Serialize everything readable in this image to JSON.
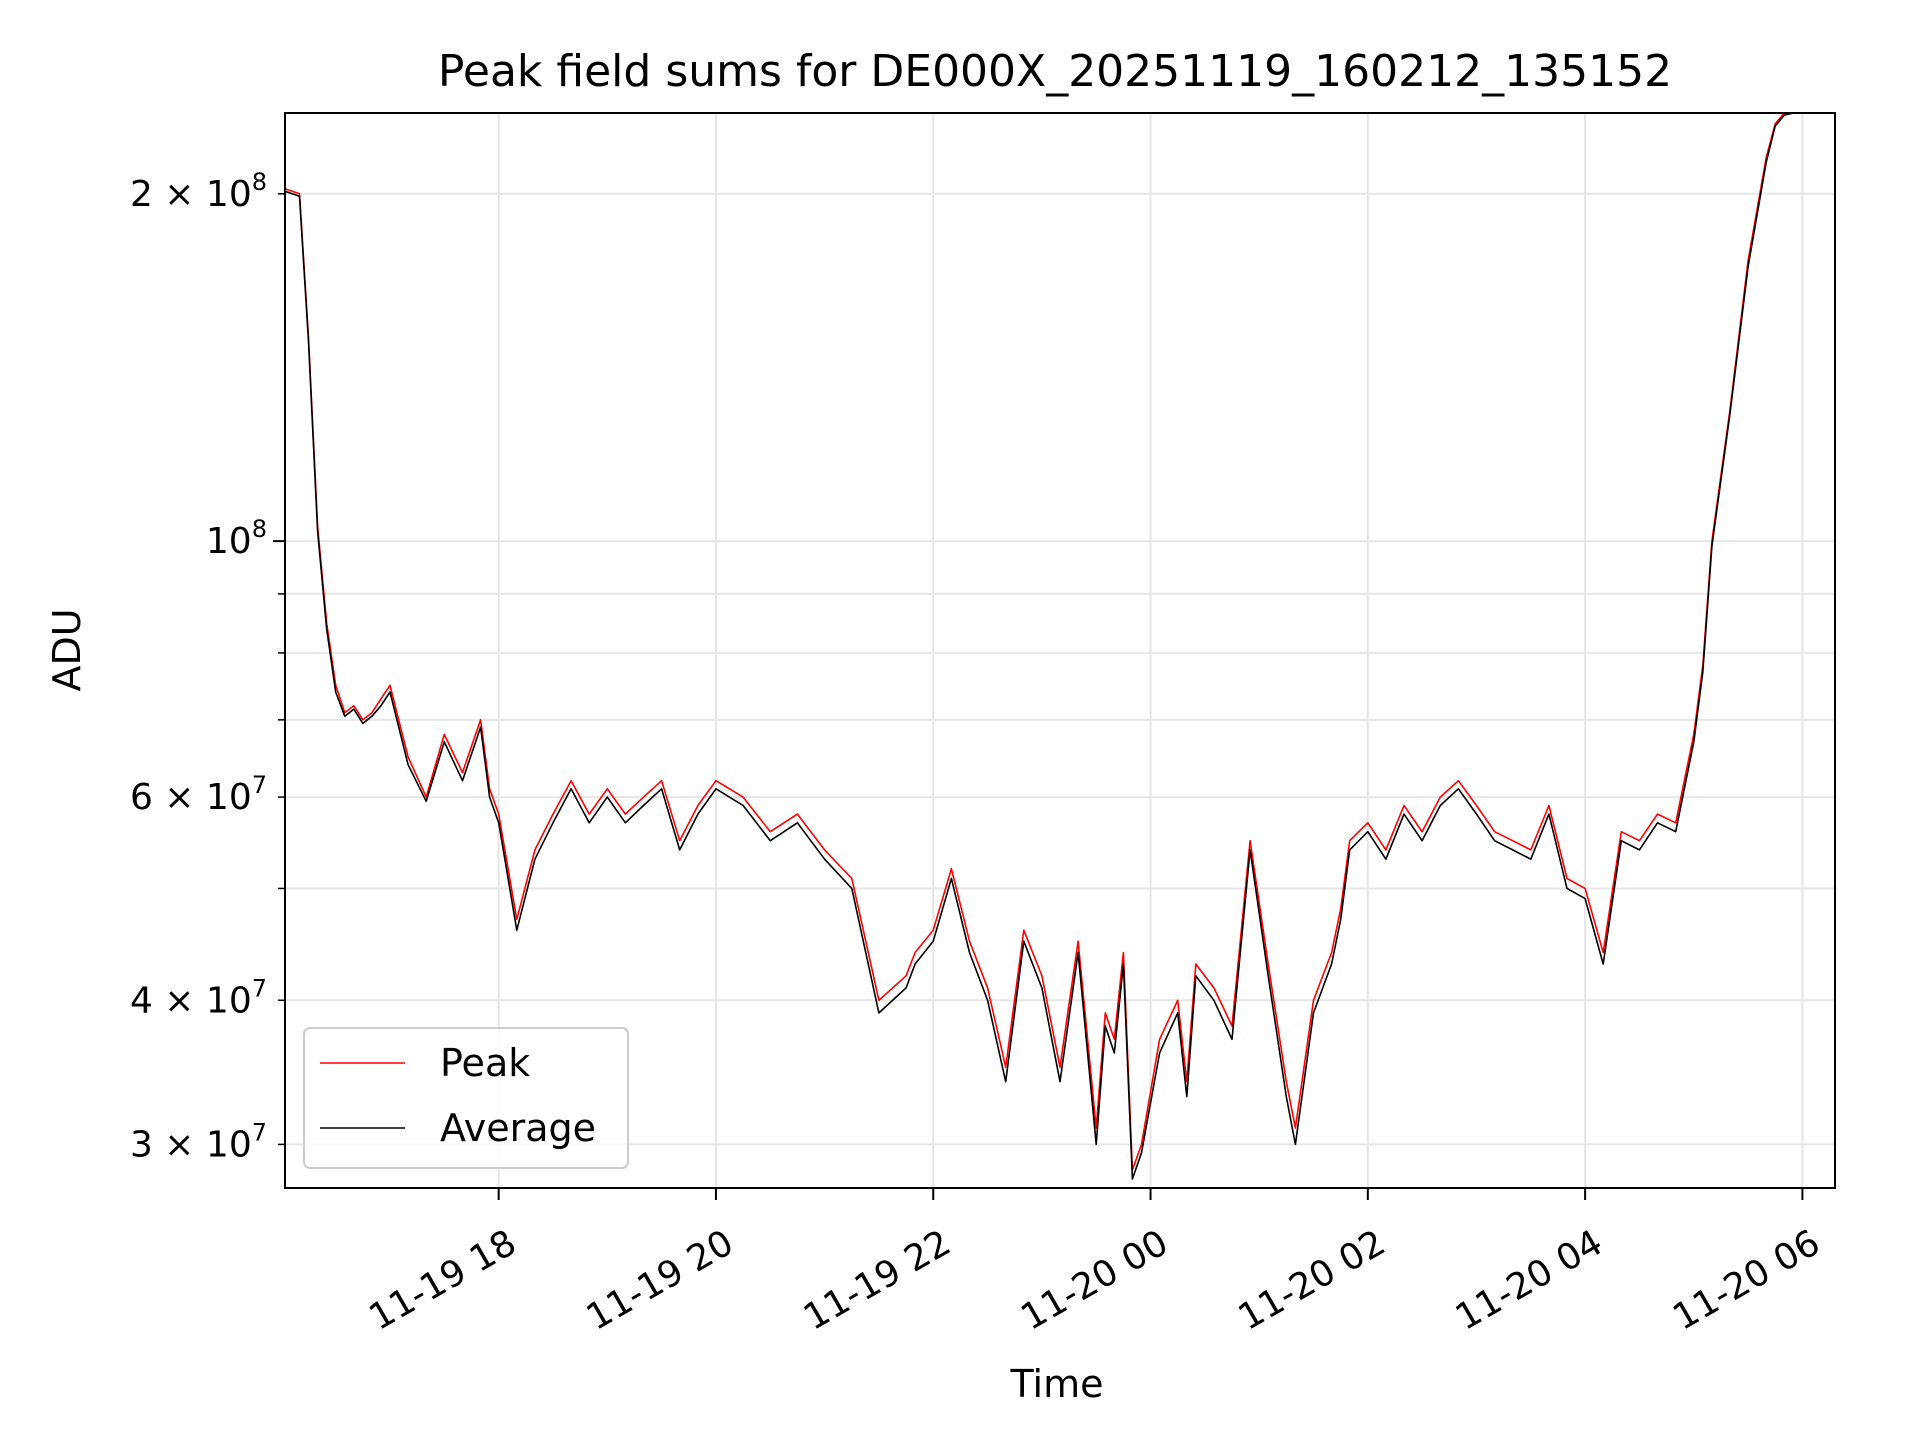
{
  "chart_data": {
    "type": "line",
    "title": "Peak field sums for DE000X_20251119_160212_135152",
    "xlabel": "Time",
    "ylabel": "ADU",
    "yscale": "log",
    "ylim": [
      27500000,
      235000000
    ],
    "xlim": [
      "2025-11-19 16:02",
      "2025-11-20 06:18"
    ],
    "grid": true,
    "legend_position": "lower-left",
    "x_ticks": [
      {
        "t": "2025-11-19 18:00",
        "label": "11-19 18"
      },
      {
        "t": "2025-11-19 20:00",
        "label": "11-19 20"
      },
      {
        "t": "2025-11-19 22:00",
        "label": "11-19 22"
      },
      {
        "t": "2025-11-20 00:00",
        "label": "11-20 00"
      },
      {
        "t": "2025-11-20 02:00",
        "label": "11-20 02"
      },
      {
        "t": "2025-11-20 04:00",
        "label": "11-20 04"
      },
      {
        "t": "2025-11-20 06:00",
        "label": "11-20 06"
      }
    ],
    "y_major_ticks": [
      {
        "value": 100000000,
        "label": "10",
        "sup": "8"
      }
    ],
    "y_minor_ticks": [
      {
        "value": 30000000,
        "label": "3 × 10",
        "sup": "7"
      },
      {
        "value": 40000000,
        "label": "4 × 10",
        "sup": "7"
      },
      {
        "value": 50000000
      },
      {
        "value": 60000000,
        "label": "6 × 10",
        "sup": "7"
      },
      {
        "value": 70000000
      },
      {
        "value": 80000000
      },
      {
        "value": 90000000
      },
      {
        "value": 200000000,
        "label": "2 × 10",
        "sup": "8"
      }
    ],
    "series": [
      {
        "name": "Peak",
        "color": "#ff0000",
        "x": [
          "2025-11-19 16:02",
          "2025-11-19 16:10",
          "2025-11-19 16:15",
          "2025-11-19 16:20",
          "2025-11-19 16:25",
          "2025-11-19 16:30",
          "2025-11-19 16:35",
          "2025-11-19 16:40",
          "2025-11-19 16:45",
          "2025-11-19 16:50",
          "2025-11-19 16:55",
          "2025-11-19 17:00",
          "2025-11-19 17:10",
          "2025-11-19 17:20",
          "2025-11-19 17:30",
          "2025-11-19 17:40",
          "2025-11-19 17:50",
          "2025-11-19 17:55",
          "2025-11-19 18:00",
          "2025-11-19 18:10",
          "2025-11-19 18:20",
          "2025-11-19 18:30",
          "2025-11-19 18:40",
          "2025-11-19 18:50",
          "2025-11-19 19:00",
          "2025-11-19 19:10",
          "2025-11-19 19:20",
          "2025-11-19 19:30",
          "2025-11-19 19:40",
          "2025-11-19 19:50",
          "2025-11-19 20:00",
          "2025-11-19 20:15",
          "2025-11-19 20:30",
          "2025-11-19 20:45",
          "2025-11-19 21:00",
          "2025-11-19 21:15",
          "2025-11-19 21:30",
          "2025-11-19 21:45",
          "2025-11-19 21:50",
          "2025-11-19 22:00",
          "2025-11-19 22:10",
          "2025-11-19 22:20",
          "2025-11-19 22:30",
          "2025-11-19 22:40",
          "2025-11-19 22:50",
          "2025-11-19 23:00",
          "2025-11-19 23:10",
          "2025-11-19 23:20",
          "2025-11-19 23:30",
          "2025-11-19 23:35",
          "2025-11-19 23:40",
          "2025-11-19 23:45",
          "2025-11-19 23:50",
          "2025-11-19 23:55",
          "2025-11-20 00:05",
          "2025-11-20 00:15",
          "2025-11-20 00:20",
          "2025-11-20 00:25",
          "2025-11-20 00:35",
          "2025-11-20 00:45",
          "2025-11-20 00:55",
          "2025-11-20 01:05",
          "2025-11-20 01:15",
          "2025-11-20 01:20",
          "2025-11-20 01:30",
          "2025-11-20 01:40",
          "2025-11-20 01:45",
          "2025-11-20 01:50",
          "2025-11-20 02:00",
          "2025-11-20 02:10",
          "2025-11-20 02:20",
          "2025-11-20 02:30",
          "2025-11-20 02:40",
          "2025-11-20 02:50",
          "2025-11-20 03:00",
          "2025-11-20 03:10",
          "2025-11-20 03:20",
          "2025-11-20 03:30",
          "2025-11-20 03:40",
          "2025-11-20 03:50",
          "2025-11-20 04:00",
          "2025-11-20 04:10",
          "2025-11-20 04:20",
          "2025-11-20 04:30",
          "2025-11-20 04:40",
          "2025-11-20 04:50",
          "2025-11-20 05:00",
          "2025-11-20 05:05",
          "2025-11-20 05:10",
          "2025-11-20 05:20",
          "2025-11-20 05:30",
          "2025-11-20 05:40",
          "2025-11-20 05:45",
          "2025-11-20 05:50",
          "2025-11-20 05:55",
          "2025-11-20 06:00",
          "2025-11-20 06:05",
          "2025-11-20 06:10",
          "2025-11-20 06:18"
        ],
        "values": [
          202000000,
          200000000,
          150000000,
          103000000,
          85000000,
          75000000,
          71000000,
          72000000,
          70000000,
          71000000,
          73000000,
          75000000,
          65000000,
          60000000,
          68000000,
          63000000,
          70000000,
          61000000,
          58000000,
          47000000,
          54000000,
          58000000,
          62000000,
          58000000,
          61000000,
          58000000,
          60000000,
          62000000,
          55000000,
          59000000,
          62000000,
          60000000,
          56000000,
          58000000,
          54000000,
          51000000,
          40000000,
          42000000,
          44000000,
          46000000,
          52000000,
          45000000,
          41000000,
          35000000,
          46000000,
          42000000,
          35000000,
          45000000,
          31000000,
          39000000,
          37000000,
          44000000,
          28500000,
          30000000,
          37000000,
          40000000,
          34000000,
          43000000,
          41000000,
          38000000,
          55000000,
          43000000,
          34000000,
          31000000,
          40000000,
          44000000,
          48000000,
          55000000,
          57000000,
          54000000,
          59000000,
          56000000,
          60000000,
          62000000,
          59000000,
          56000000,
          55000000,
          54000000,
          59000000,
          51000000,
          50000000,
          44000000,
          56000000,
          55000000,
          58000000,
          57000000,
          68000000,
          78000000,
          100000000,
          130000000,
          175000000,
          215000000,
          230000000,
          235000000,
          235000000,
          235000000,
          235000000,
          235000000,
          235000000
        ]
      },
      {
        "name": "Average",
        "color": "#000000",
        "x": [
          "2025-11-19 16:02",
          "2025-11-19 16:10",
          "2025-11-19 16:15",
          "2025-11-19 16:20",
          "2025-11-19 16:25",
          "2025-11-19 16:30",
          "2025-11-19 16:35",
          "2025-11-19 16:40",
          "2025-11-19 16:45",
          "2025-11-19 16:50",
          "2025-11-19 16:55",
          "2025-11-19 17:00",
          "2025-11-19 17:10",
          "2025-11-19 17:20",
          "2025-11-19 17:30",
          "2025-11-19 17:40",
          "2025-11-19 17:50",
          "2025-11-19 17:55",
          "2025-11-19 18:00",
          "2025-11-19 18:10",
          "2025-11-19 18:20",
          "2025-11-19 18:30",
          "2025-11-19 18:40",
          "2025-11-19 18:50",
          "2025-11-19 19:00",
          "2025-11-19 19:10",
          "2025-11-19 19:20",
          "2025-11-19 19:30",
          "2025-11-19 19:40",
          "2025-11-19 19:50",
          "2025-11-19 20:00",
          "2025-11-19 20:15",
          "2025-11-19 20:30",
          "2025-11-19 20:45",
          "2025-11-19 21:00",
          "2025-11-19 21:15",
          "2025-11-19 21:30",
          "2025-11-19 21:45",
          "2025-11-19 21:50",
          "2025-11-19 22:00",
          "2025-11-19 22:10",
          "2025-11-19 22:20",
          "2025-11-19 22:30",
          "2025-11-19 22:40",
          "2025-11-19 22:50",
          "2025-11-19 23:00",
          "2025-11-19 23:10",
          "2025-11-19 23:20",
          "2025-11-19 23:30",
          "2025-11-19 23:35",
          "2025-11-19 23:40",
          "2025-11-19 23:45",
          "2025-11-19 23:50",
          "2025-11-19 23:55",
          "2025-11-20 00:05",
          "2025-11-20 00:15",
          "2025-11-20 00:20",
          "2025-11-20 00:25",
          "2025-11-20 00:35",
          "2025-11-20 00:45",
          "2025-11-20 00:55",
          "2025-11-20 01:05",
          "2025-11-20 01:15",
          "2025-11-20 01:20",
          "2025-11-20 01:30",
          "2025-11-20 01:40",
          "2025-11-20 01:45",
          "2025-11-20 01:50",
          "2025-11-20 02:00",
          "2025-11-20 02:10",
          "2025-11-20 02:20",
          "2025-11-20 02:30",
          "2025-11-20 02:40",
          "2025-11-20 02:50",
          "2025-11-20 03:00",
          "2025-11-20 03:10",
          "2025-11-20 03:20",
          "2025-11-20 03:30",
          "2025-11-20 03:40",
          "2025-11-20 03:50",
          "2025-11-20 04:00",
          "2025-11-20 04:10",
          "2025-11-20 04:20",
          "2025-11-20 04:30",
          "2025-11-20 04:40",
          "2025-11-20 04:50",
          "2025-11-20 05:00",
          "2025-11-20 05:05",
          "2025-11-20 05:10",
          "2025-11-20 05:20",
          "2025-11-20 05:30",
          "2025-11-20 05:40",
          "2025-11-20 05:45",
          "2025-11-20 05:50",
          "2025-11-20 05:55",
          "2025-11-20 06:00",
          "2025-11-20 06:05",
          "2025-11-20 06:10",
          "2025-11-20 06:18"
        ],
        "values": [
          201000000,
          199000000,
          149000000,
          102000000,
          84000000,
          74000000,
          70500000,
          71500000,
          69500000,
          70500000,
          72000000,
          74000000,
          64000000,
          59500000,
          67000000,
          62000000,
          69000000,
          60000000,
          57000000,
          46000000,
          53000000,
          57000000,
          61000000,
          57000000,
          60000000,
          57000000,
          59000000,
          61000000,
          54000000,
          58000000,
          61000000,
          59000000,
          55000000,
          57000000,
          53000000,
          50000000,
          39000000,
          41000000,
          43000000,
          45000000,
          51000000,
          44000000,
          40000000,
          34000000,
          45000000,
          41000000,
          34000000,
          44000000,
          30000000,
          38000000,
          36000000,
          43000000,
          28000000,
          29500000,
          36000000,
          39000000,
          33000000,
          42000000,
          40000000,
          37000000,
          54000000,
          42000000,
          33000000,
          30000000,
          39000000,
          43000000,
          47000000,
          54000000,
          56000000,
          53000000,
          58000000,
          55000000,
          59000000,
          61000000,
          58000000,
          55000000,
          54000000,
          53000000,
          58000000,
          50000000,
          49000000,
          43000000,
          55000000,
          54000000,
          57000000,
          56000000,
          67000000,
          77000000,
          99000000,
          129000000,
          173000000,
          213000000,
          229000000,
          234000000,
          235000000,
          235000000,
          235000000,
          235000000,
          235000000
        ]
      }
    ]
  }
}
